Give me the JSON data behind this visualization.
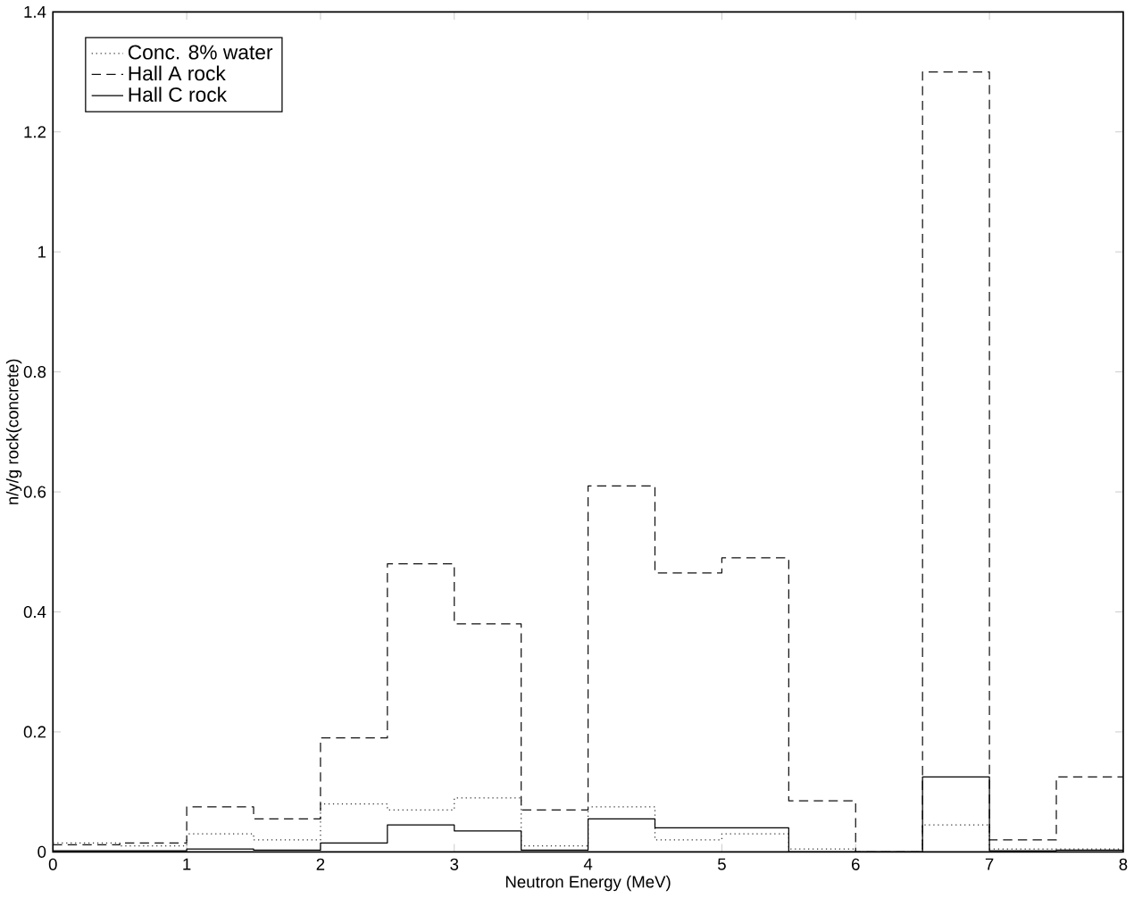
{
  "chart_data": {
    "type": "histogram",
    "xlabel": "Neutron Energy (MeV)",
    "ylabel": "n/y/g rock(concrete)",
    "bins": [
      0,
      0.5,
      1,
      1.5,
      2,
      2.5,
      3,
      3.5,
      4,
      4.5,
      5,
      5.5,
      6,
      6.5,
      7,
      7.5,
      8
    ],
    "series": [
      {
        "name": "Conc. 8% water",
        "color": "#333333",
        "line_style": "dotted",
        "values": [
          0.015,
          0.01,
          0.03,
          0.02,
          0.08,
          0.07,
          0.09,
          0.01,
          0.075,
          0.02,
          0.03,
          0.005,
          0,
          0.045,
          0.005,
          0.005
        ]
      },
      {
        "name": "Hall A rock",
        "color": "#111111",
        "line_style": "dashed",
        "values": [
          0.012,
          0.015,
          0.075,
          0.055,
          0.19,
          0.48,
          0.38,
          0.07,
          0.61,
          0.465,
          0.49,
          0.085,
          0,
          1.3,
          0.02,
          0.125
        ]
      },
      {
        "name": "Hall C rock",
        "color": "#000000",
        "line_style": "solid",
        "values": [
          0.002,
          0.002,
          0.005,
          0.003,
          0.015,
          0.045,
          0.035,
          0.003,
          0.055,
          0.04,
          0.04,
          0,
          0,
          0.125,
          0.002,
          0.003
        ]
      }
    ],
    "xlim": [
      0,
      8
    ],
    "ylim": [
      0,
      1.4
    ],
    "xticks": [
      0,
      1,
      2,
      3,
      4,
      5,
      6,
      7,
      8
    ],
    "yticks": [
      0,
      0.2,
      0.4,
      0.6,
      0.8,
      1,
      1.2,
      1.4
    ],
    "legend": "top left",
    "grid": false
  }
}
